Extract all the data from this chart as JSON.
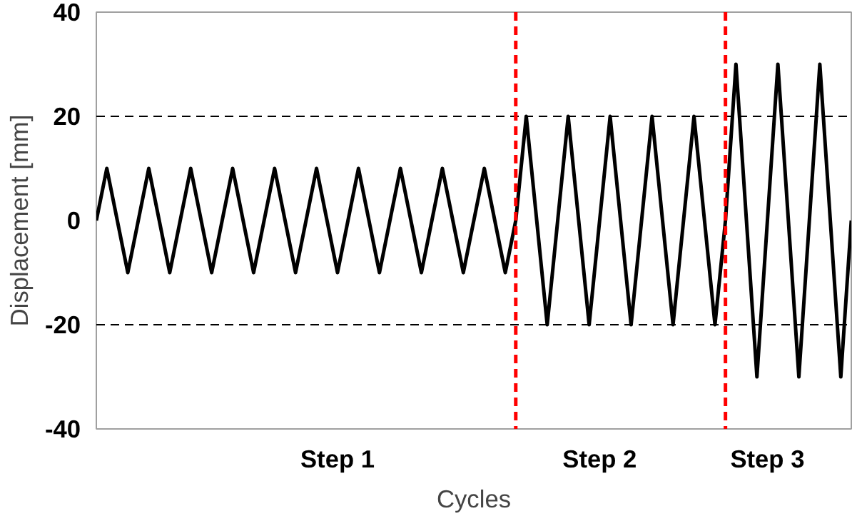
{
  "chart_data": {
    "type": "line",
    "xlabel": "Cycles",
    "ylabel": "Displacement [mm]",
    "categories": [
      null,
      null,
      null,
      null,
      null,
      null,
      null,
      null,
      null,
      null,
      null,
      null,
      null,
      null,
      null,
      null,
      null,
      null,
      null,
      null,
      null,
      null,
      null,
      "Step 1",
      null,
      null,
      null,
      null,
      null,
      null,
      null,
      null,
      null,
      null,
      null,
      null,
      null,
      null,
      null,
      null,
      null,
      null,
      null,
      null,
      null,
      null,
      null,
      null,
      "Step 2",
      null,
      null,
      null,
      null,
      null,
      null,
      null,
      null,
      null,
      null,
      null,
      null,
      null,
      null,
      null,
      "Step 3",
      null,
      null,
      null,
      null,
      null,
      null,
      null,
      null
    ],
    "series": [
      {
        "color": "#000000",
        "values": [
          0,
          10,
          0,
          -10,
          0,
          10,
          0,
          -10,
          0,
          10,
          0,
          -10,
          0,
          10,
          0,
          -10,
          0,
          10,
          0,
          -10,
          0,
          10,
          0,
          -10,
          0,
          10,
          0,
          -10,
          0,
          10,
          0,
          -10,
          0,
          10,
          0,
          -10,
          0,
          10,
          0,
          -10,
          0,
          20,
          0,
          -20,
          0,
          20,
          0,
          -20,
          0,
          20,
          0,
          -20,
          0,
          20,
          0,
          -20,
          0,
          20,
          0,
          -20,
          0,
          30,
          0,
          -30,
          0,
          30,
          0,
          -30,
          0,
          30,
          0,
          -30,
          0
        ]
      }
    ],
    "ylim": [
      -40,
      40
    ],
    "yticks": [
      -40,
      -20,
      0,
      20,
      40
    ],
    "grid": false,
    "marker": "none",
    "line_style": "solid",
    "ref_lines": [
      {
        "axis": "y",
        "value": 20,
        "color": "#000000",
        "line_style": "dashed"
      },
      {
        "axis": "y",
        "value": -20,
        "color": "#000000",
        "line_style": "dashed"
      }
    ]
  }
}
